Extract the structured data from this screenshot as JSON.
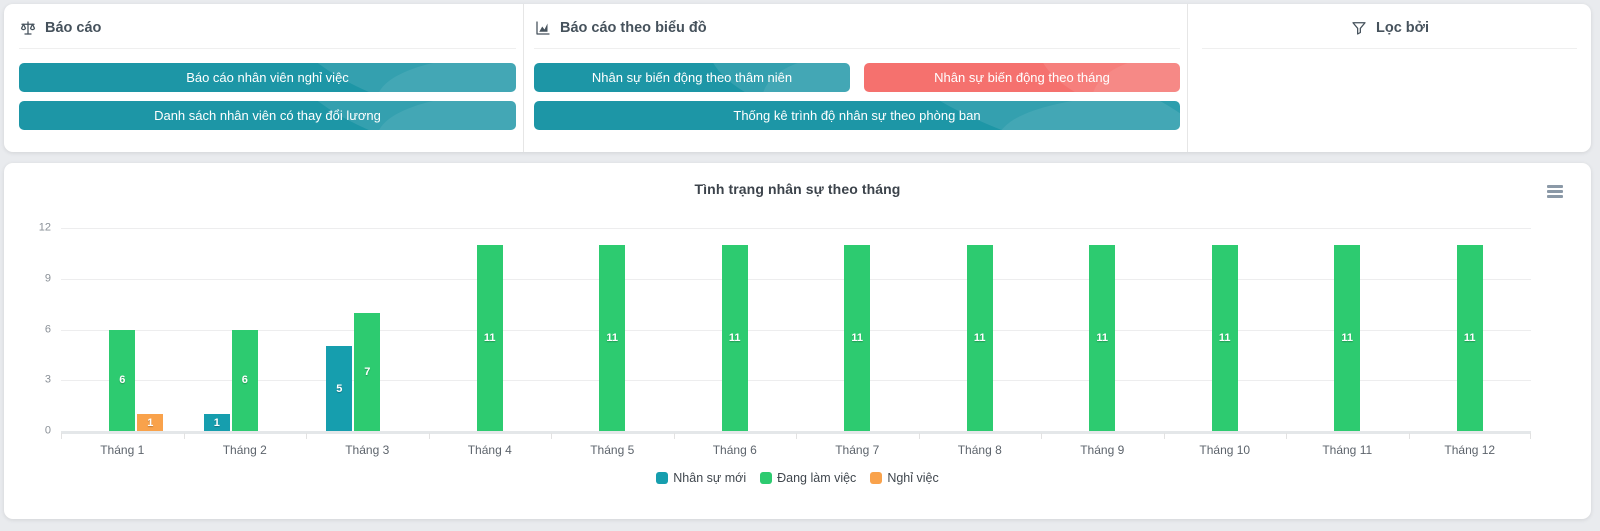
{
  "colors": {
    "accent_teal": "#1D96A6",
    "accent_red": "#F5716E",
    "page_background": "#E9EBEE"
  },
  "report_panel": {
    "reports": {
      "title": "Báo cáo",
      "icon": "scale-icon",
      "buttons": [
        {
          "label": "Báo cáo nhân viên nghỉ việc",
          "variant": "teal"
        },
        {
          "label": "Danh sách nhân viên có thay đổi lương",
          "variant": "teal"
        }
      ]
    },
    "chart_reports": {
      "title": "Báo cáo theo biểu đồ",
      "icon": "area-chart-icon",
      "buttons": [
        {
          "label": "Nhân sự biến động theo thâm niên",
          "variant": "teal"
        },
        {
          "label": "Nhân sự biến động theo tháng",
          "variant": "red"
        },
        {
          "label": "Thống kê trình độ nhân sự theo phòng ban",
          "variant": "teal"
        }
      ]
    },
    "filter": {
      "title": "Lọc bởi",
      "icon": "funnel-icon"
    }
  },
  "chart_card": {
    "title": "Tình trạng nhân sự theo tháng",
    "menu_icon": "hamburger-menu-icon"
  },
  "chart_data": {
    "type": "bar",
    "title": "Tình trạng nhân sự theo tháng",
    "categories": [
      "Tháng 1",
      "Tháng 2",
      "Tháng 3",
      "Tháng 4",
      "Tháng 5",
      "Tháng 6",
      "Tháng 7",
      "Tháng 8",
      "Tháng 9",
      "Tháng 10",
      "Tháng 11",
      "Tháng 12"
    ],
    "series": [
      {
        "name": "Nhân sự mới",
        "color": "#169EAE",
        "values": [
          0,
          1,
          5,
          0,
          0,
          0,
          0,
          0,
          0,
          0,
          0,
          0
        ]
      },
      {
        "name": "Đang làm việc",
        "color": "#2DCB70",
        "values": [
          6,
          6,
          7,
          11,
          11,
          11,
          11,
          11,
          11,
          11,
          11,
          11
        ]
      },
      {
        "name": "Nghỉ việc",
        "color": "#F9A24B",
        "values": [
          1,
          0,
          0,
          0,
          0,
          0,
          0,
          0,
          0,
          0,
          0,
          0
        ]
      }
    ],
    "ylim": [
      0,
      12
    ],
    "yticks": [
      0,
      3,
      6,
      9,
      12
    ],
    "grid": true,
    "legend_position": "bottom",
    "bar_value_labels": true,
    "xlabel": "",
    "ylabel": ""
  }
}
